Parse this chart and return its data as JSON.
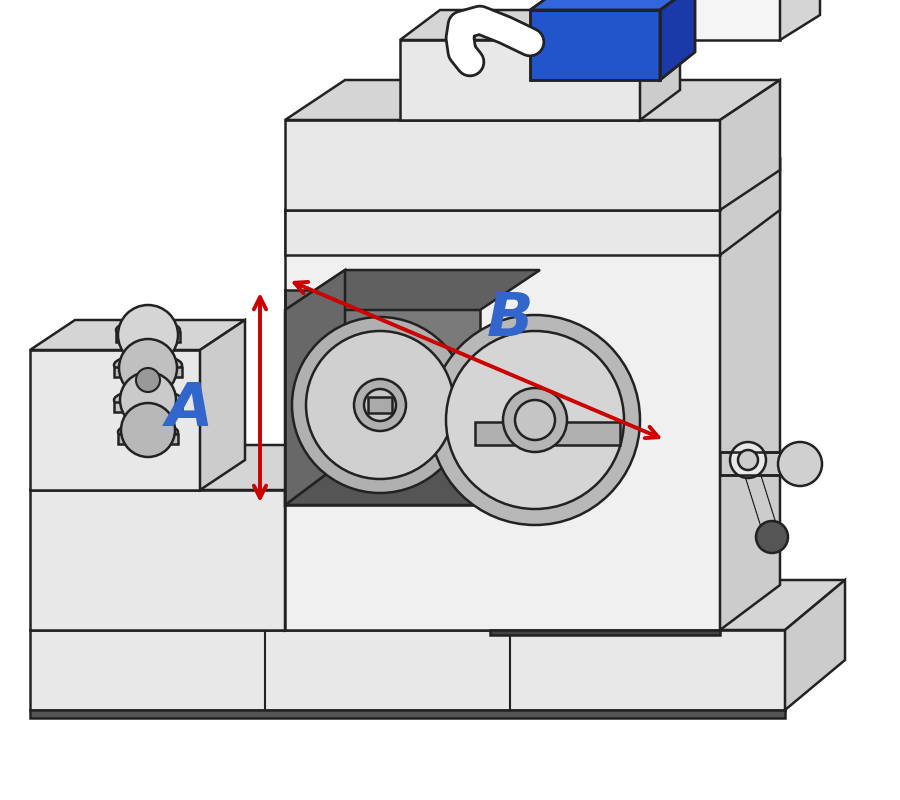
{
  "bg_color": "#ffffff",
  "label_A": "A",
  "label_B": "B",
  "label_color": "#3366cc",
  "arrow_color": "#cc0000",
  "body": "#e8e8e8",
  "body_light": "#f0f0f0",
  "face_top": "#d5d5d5",
  "face_right": "#cccccc",
  "face_right2": "#c0c0c0",
  "dark_gray": "#888888",
  "mid_gray": "#aaaaaa",
  "darker_gray": "#707070",
  "darkest": "#333333",
  "blue_front": "#2255cc",
  "blue_top": "#3366dd",
  "blue_right": "#1a3aaa",
  "outline": "#222222",
  "figsize": [
    9.0,
    8.0
  ],
  "dpi": 100
}
